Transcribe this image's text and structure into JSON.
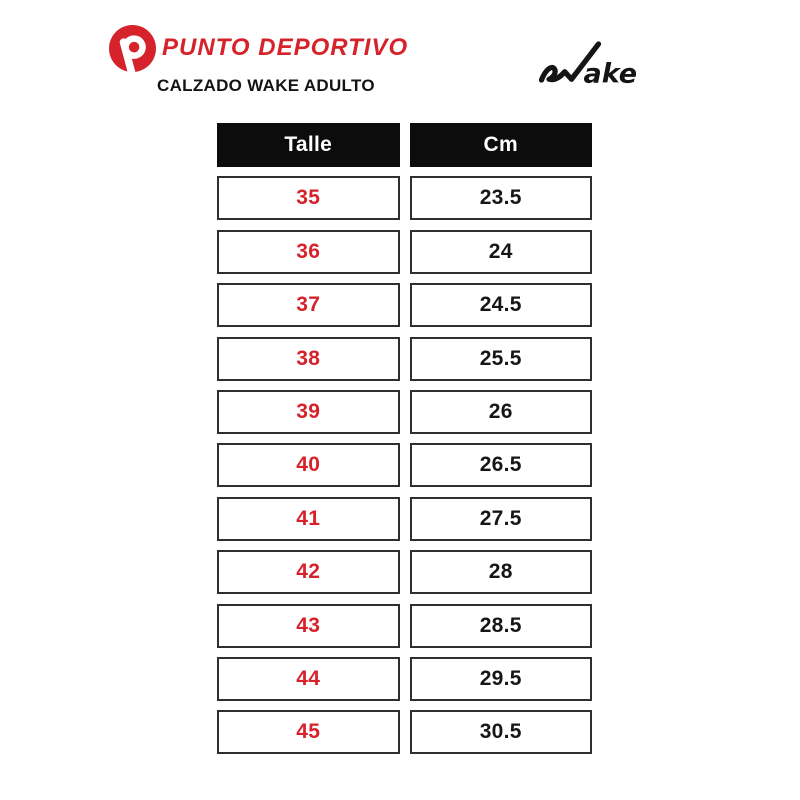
{
  "header": {
    "brand_name": "PUNTO DEPORTIVO",
    "brand_icon": "punto-deportivo-p-icon",
    "subtitle": "CALZADO WAKE ADULTO",
    "wake_wordmark": "Wake",
    "wake_wordmark_tail": "ake"
  },
  "table": {
    "headers": [
      "Talle",
      "Cm"
    ],
    "rows": [
      [
        "35",
        "23.5"
      ],
      [
        "36",
        "24"
      ],
      [
        "37",
        "24.5"
      ],
      [
        "38",
        "25.5"
      ],
      [
        "39",
        "26"
      ],
      [
        "40",
        "26.5"
      ],
      [
        "41",
        "27.5"
      ],
      [
        "42",
        "28"
      ],
      [
        "43",
        "28.5"
      ],
      [
        "44",
        "29.5"
      ],
      [
        "45",
        "30.5"
      ]
    ]
  },
  "chart_data": {
    "type": "table",
    "title": "CALZADO WAKE ADULTO",
    "columns": [
      "Talle",
      "Cm"
    ],
    "rows": [
      [
        35,
        23.5
      ],
      [
        36,
        24
      ],
      [
        37,
        24.5
      ],
      [
        38,
        25.5
      ],
      [
        39,
        26
      ],
      [
        40,
        26.5
      ],
      [
        41,
        27.5
      ],
      [
        42,
        28
      ],
      [
        43,
        28.5
      ],
      [
        44,
        29.5
      ],
      [
        45,
        30.5
      ]
    ]
  },
  "colors": {
    "accent_red": "#d6232b",
    "header_black": "#0c0c0c",
    "cell_border": "#2f2f2f",
    "background": "#ffffff"
  }
}
